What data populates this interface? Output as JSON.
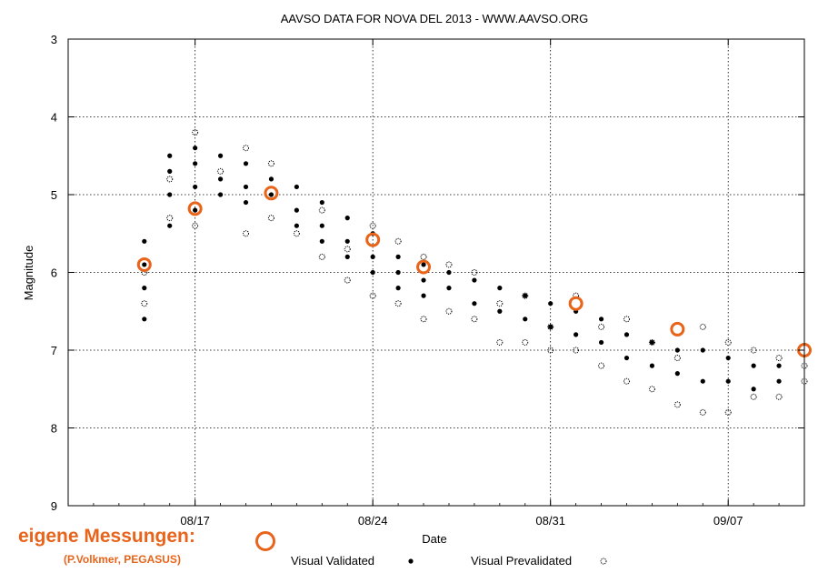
{
  "chart_data": {
    "type": "scatter",
    "title": "AAVSO DATA FOR NOVA DEL 2013 - WWW.AAVSO.ORG",
    "xlabel": "Date",
    "ylabel": "Magnitude",
    "x_ticks": [
      "08/17",
      "08/24",
      "08/31",
      "09/07"
    ],
    "y_ticks": [
      3,
      4,
      5,
      6,
      7,
      8,
      9
    ],
    "xlim": [
      "2013-08-12",
      "2013-09-10"
    ],
    "ylim": [
      9,
      3
    ],
    "y_inverted": true,
    "grid": true,
    "legend_position": "bottom",
    "series": [
      {
        "name": "Visual Validated",
        "marker": "filled-dot",
        "color": "#000000",
        "points": [
          [
            "2013-08-15",
            6.6
          ],
          [
            "2013-08-15",
            6.2
          ],
          [
            "2013-08-15",
            5.9
          ],
          [
            "2013-08-15",
            5.6
          ],
          [
            "2013-08-16",
            5.4
          ],
          [
            "2013-08-16",
            5.0
          ],
          [
            "2013-08-16",
            4.7
          ],
          [
            "2013-08-16",
            4.5
          ],
          [
            "2013-08-17",
            4.4
          ],
          [
            "2013-08-17",
            4.6
          ],
          [
            "2013-08-17",
            4.9
          ],
          [
            "2013-08-17",
            5.2
          ],
          [
            "2013-08-18",
            4.8
          ],
          [
            "2013-08-18",
            4.5
          ],
          [
            "2013-08-18",
            5.0
          ],
          [
            "2013-08-19",
            4.6
          ],
          [
            "2013-08-19",
            4.9
          ],
          [
            "2013-08-19",
            5.1
          ],
          [
            "2013-08-20",
            4.8
          ],
          [
            "2013-08-20",
            5.0
          ],
          [
            "2013-08-21",
            4.9
          ],
          [
            "2013-08-21",
            5.2
          ],
          [
            "2013-08-21",
            5.4
          ],
          [
            "2013-08-22",
            5.1
          ],
          [
            "2013-08-22",
            5.4
          ],
          [
            "2013-08-22",
            5.6
          ],
          [
            "2013-08-23",
            5.3
          ],
          [
            "2013-08-23",
            5.6
          ],
          [
            "2013-08-23",
            5.8
          ],
          [
            "2013-08-24",
            5.5
          ],
          [
            "2013-08-24",
            5.8
          ],
          [
            "2013-08-24",
            6.0
          ],
          [
            "2013-08-25",
            5.8
          ],
          [
            "2013-08-25",
            6.0
          ],
          [
            "2013-08-25",
            6.2
          ],
          [
            "2013-08-26",
            5.9
          ],
          [
            "2013-08-26",
            6.1
          ],
          [
            "2013-08-26",
            6.3
          ],
          [
            "2013-08-27",
            6.0
          ],
          [
            "2013-08-27",
            6.2
          ],
          [
            "2013-08-28",
            6.1
          ],
          [
            "2013-08-28",
            6.4
          ],
          [
            "2013-08-29",
            6.2
          ],
          [
            "2013-08-29",
            6.5
          ],
          [
            "2013-08-30",
            6.3
          ],
          [
            "2013-08-30",
            6.6
          ],
          [
            "2013-08-31",
            6.4
          ],
          [
            "2013-08-31",
            6.7
          ],
          [
            "2013-09-01",
            6.5
          ],
          [
            "2013-09-01",
            6.8
          ],
          [
            "2013-09-02",
            6.6
          ],
          [
            "2013-09-02",
            6.9
          ],
          [
            "2013-09-03",
            6.8
          ],
          [
            "2013-09-03",
            7.1
          ],
          [
            "2013-09-04",
            6.9
          ],
          [
            "2013-09-04",
            7.2
          ],
          [
            "2013-09-05",
            7.0
          ],
          [
            "2013-09-05",
            7.3
          ],
          [
            "2013-09-06",
            7.0
          ],
          [
            "2013-09-06",
            7.4
          ],
          [
            "2013-09-07",
            7.1
          ],
          [
            "2013-09-07",
            7.4
          ],
          [
            "2013-09-08",
            7.2
          ],
          [
            "2013-09-08",
            7.5
          ],
          [
            "2013-09-09",
            7.2
          ],
          [
            "2013-09-09",
            7.4
          ]
        ]
      },
      {
        "name": "Visual Prevalidated",
        "marker": "dotted-circle",
        "color": "#000000",
        "points": [
          [
            "2013-08-15",
            6.4
          ],
          [
            "2013-08-15",
            6.0
          ],
          [
            "2013-08-16",
            5.3
          ],
          [
            "2013-08-16",
            4.8
          ],
          [
            "2013-08-17",
            4.2
          ],
          [
            "2013-08-17",
            5.4
          ],
          [
            "2013-08-18",
            4.7
          ],
          [
            "2013-08-19",
            4.4
          ],
          [
            "2013-08-19",
            5.5
          ],
          [
            "2013-08-20",
            4.6
          ],
          [
            "2013-08-20",
            5.3
          ],
          [
            "2013-08-21",
            5.5
          ],
          [
            "2013-08-22",
            5.2
          ],
          [
            "2013-08-22",
            5.8
          ],
          [
            "2013-08-23",
            5.7
          ],
          [
            "2013-08-23",
            6.1
          ],
          [
            "2013-08-24",
            5.4
          ],
          [
            "2013-08-24",
            6.3
          ],
          [
            "2013-08-25",
            5.6
          ],
          [
            "2013-08-25",
            6.4
          ],
          [
            "2013-08-26",
            5.8
          ],
          [
            "2013-08-26",
            6.6
          ],
          [
            "2013-08-27",
            5.9
          ],
          [
            "2013-08-27",
            6.5
          ],
          [
            "2013-08-28",
            6.0
          ],
          [
            "2013-08-28",
            6.6
          ],
          [
            "2013-08-29",
            6.4
          ],
          [
            "2013-08-29",
            6.9
          ],
          [
            "2013-08-30",
            6.3
          ],
          [
            "2013-08-30",
            6.9
          ],
          [
            "2013-08-31",
            6.7
          ],
          [
            "2013-08-31",
            7.0
          ],
          [
            "2013-09-01",
            6.3
          ],
          [
            "2013-09-01",
            7.0
          ],
          [
            "2013-09-02",
            6.7
          ],
          [
            "2013-09-02",
            7.2
          ],
          [
            "2013-09-03",
            6.6
          ],
          [
            "2013-09-03",
            7.4
          ],
          [
            "2013-09-04",
            6.9
          ],
          [
            "2013-09-04",
            7.5
          ],
          [
            "2013-09-05",
            7.7
          ],
          [
            "2013-09-05",
            7.1
          ],
          [
            "2013-09-06",
            6.7
          ],
          [
            "2013-09-06",
            7.8
          ],
          [
            "2013-09-07",
            6.9
          ],
          [
            "2013-09-07",
            7.8
          ],
          [
            "2013-09-08",
            7.0
          ],
          [
            "2013-09-08",
            7.6
          ],
          [
            "2013-09-09",
            7.1
          ],
          [
            "2013-09-09",
            7.6
          ],
          [
            "2013-09-10",
            7.2
          ],
          [
            "2013-09-10",
            7.4
          ]
        ]
      },
      {
        "name": "eigene Messungen:",
        "marker": "open-circle",
        "color": "#e8641b",
        "points": [
          [
            "2013-08-15",
            5.9
          ],
          [
            "2013-08-17",
            5.18
          ],
          [
            "2013-08-20",
            4.98
          ],
          [
            "2013-08-24",
            5.58
          ],
          [
            "2013-08-26",
            5.93
          ],
          [
            "2013-09-01",
            6.4
          ],
          [
            "2013-09-05",
            6.73
          ],
          [
            "2013-09-10",
            7.0
          ]
        ]
      }
    ],
    "own_credit": "(P.Volkmer, PEGASUS)"
  }
}
